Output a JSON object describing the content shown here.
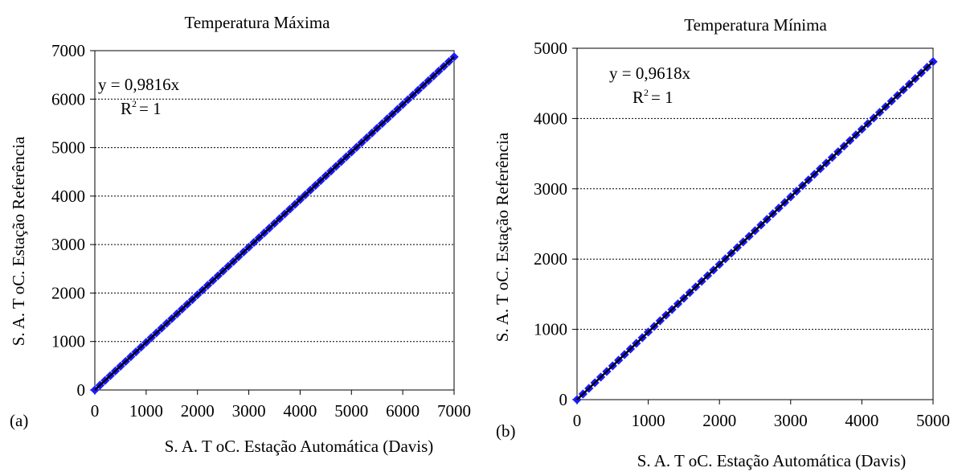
{
  "colors": {
    "background": "#ffffff",
    "series_marker": "#1a1aff",
    "trendline": "#000000",
    "gridline": "#000000"
  },
  "chart_data": [
    {
      "type": "scatter",
      "panel_label": "(a)",
      "title": "Temperatura Máxima",
      "xlabel": "S. A. T oC.  Estação Automática (Davis)",
      "ylabel": "S. A. T oC. Estação  Referência",
      "xlim": [
        0,
        7000
      ],
      "ylim": [
        0,
        7000
      ],
      "x_ticks": [
        0,
        1000,
        2000,
        3000,
        4000,
        5000,
        6000,
        7000
      ],
      "y_ticks": [
        0,
        1000,
        2000,
        3000,
        4000,
        5000,
        6000,
        7000
      ],
      "grid": "horizontal dotted",
      "trendline": {
        "equation": "y = 0,9816x",
        "slope": 0.9816,
        "r2_label": "R",
        "r2_sup": "2",
        "r2_value": "= 1"
      },
      "series": [
        {
          "x_range": [
            0,
            7000
          ],
          "slope": 0.9816,
          "points": 70
        }
      ]
    },
    {
      "type": "scatter",
      "panel_label": "(b)",
      "title": "Temperatura Mínima",
      "xlabel": "S. A. T oC.  Estação Automática (Davis)",
      "ylabel": "S. A. T oC. Estação Referência",
      "xlim": [
        0,
        5000
      ],
      "ylim": [
        0,
        5000
      ],
      "x_ticks": [
        0,
        1000,
        2000,
        3000,
        4000,
        5000
      ],
      "y_ticks": [
        0,
        1000,
        2000,
        3000,
        4000,
        5000
      ],
      "grid": "horizontal dotted",
      "trendline": {
        "equation": "y = 0,9618x",
        "slope": 0.9618,
        "r2_label": "R",
        "r2_sup": "2",
        "r2_value": "= 1"
      },
      "series": [
        {
          "x_range": [
            0,
            5000
          ],
          "slope": 0.9618,
          "points": 60
        }
      ]
    }
  ]
}
